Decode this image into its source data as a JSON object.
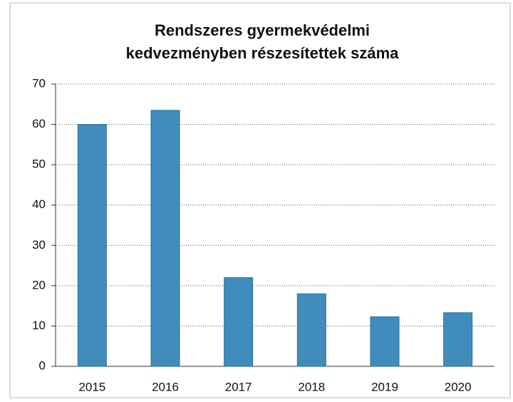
{
  "chart_data": {
    "type": "bar",
    "title": [
      "Rendszeres gyermekvédelmi",
      "kedvezményben részesítettek száma"
    ],
    "categories": [
      "2015",
      "2016",
      "2017",
      "2018",
      "2019",
      "2020"
    ],
    "values": [
      60,
      63.5,
      22,
      18,
      12.3,
      13.3
    ],
    "color": "#3f8cbd",
    "ylim": [
      0,
      70
    ],
    "yticks": [
      0,
      10,
      20,
      30,
      40,
      50,
      60,
      70
    ],
    "grid": true
  }
}
